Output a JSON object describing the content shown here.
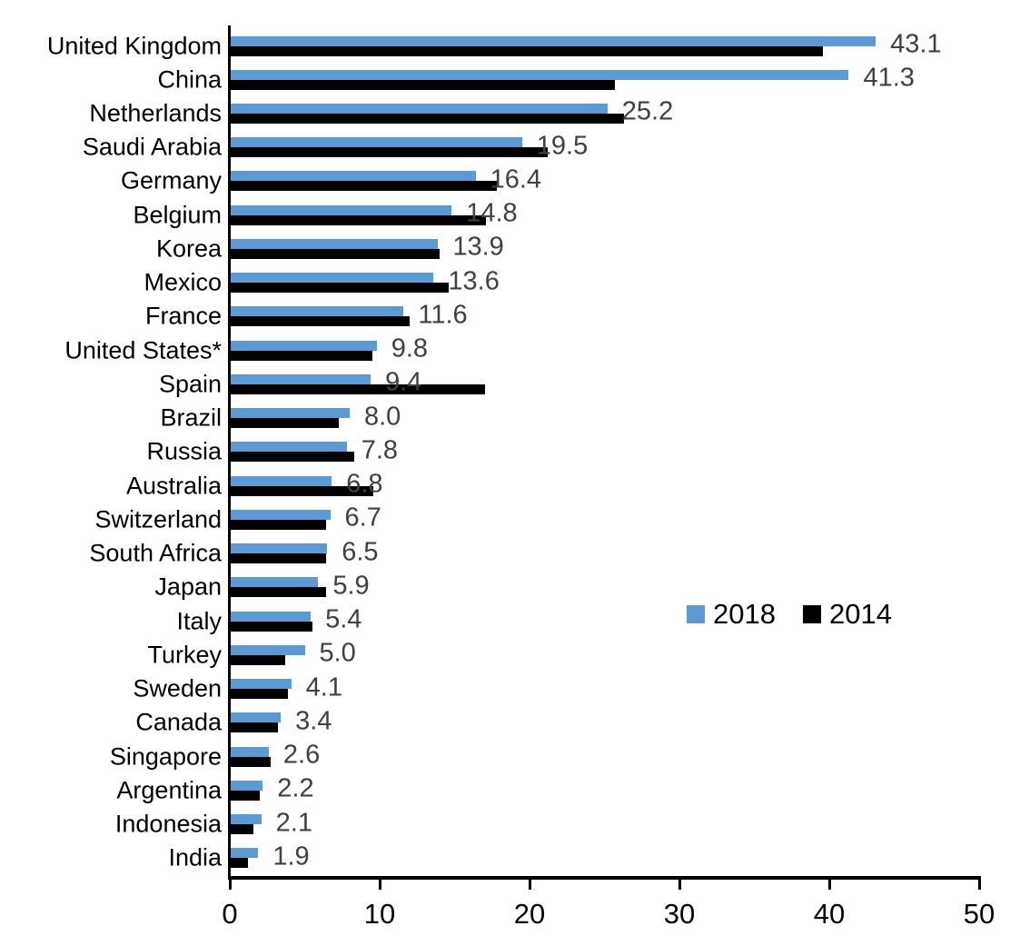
{
  "chart_data": {
    "type": "bar",
    "orientation": "horizontal",
    "title": "",
    "xlabel": "",
    "ylabel": "",
    "xlim": [
      0,
      50
    ],
    "x_ticks": [
      0,
      10,
      20,
      30,
      40,
      50
    ],
    "grid": false,
    "legend_position": "middle-right",
    "data_labels_on": "2018",
    "categories": [
      "United Kingdom",
      "China",
      "Netherlands",
      "Saudi Arabia",
      "Germany",
      "Belgium",
      "Korea",
      "Mexico",
      "France",
      "United States*",
      "Spain",
      "Brazil",
      "Russia",
      "Australia",
      "Switzerland",
      "South Africa",
      "Japan",
      "Italy",
      "Turkey",
      "Sweden",
      "Canada",
      "Singapore",
      "Argentina",
      "Indonesia",
      "India"
    ],
    "series": [
      {
        "name": "2018",
        "color": "#5C9AD3",
        "values": [
          43.1,
          41.3,
          25.2,
          19.5,
          16.4,
          14.8,
          13.9,
          13.6,
          11.6,
          9.8,
          9.4,
          8.0,
          7.8,
          6.8,
          6.7,
          6.5,
          5.9,
          5.4,
          5.0,
          4.1,
          3.4,
          2.6,
          2.2,
          2.1,
          1.9
        ],
        "data_labels": [
          "43.1",
          "41.3",
          "25.2",
          "19.5",
          "16.4",
          "14.8",
          "13.9",
          "13.6",
          "11.6",
          "9.8",
          "9.4",
          "8.0",
          "7.8",
          "6.8",
          "6.7",
          "6.5",
          "5.9",
          "5.4",
          "5.0",
          "4.1",
          "3.4",
          "2.6",
          "2.2",
          "2.1",
          "1.9"
        ]
      },
      {
        "name": "2014",
        "color": "#000000",
        "values": [
          39.6,
          25.7,
          26.3,
          21.2,
          17.8,
          17.1,
          14.0,
          14.6,
          12.0,
          9.5,
          17.0,
          7.3,
          8.3,
          9.6,
          6.4,
          6.4,
          6.4,
          5.5,
          3.7,
          3.9,
          3.2,
          2.7,
          2.0,
          1.6,
          1.2
        ]
      }
    ],
    "x_tick_labels": [
      "0",
      "10",
      "20",
      "30",
      "40",
      "50"
    ]
  },
  "legend": {
    "items": [
      {
        "label": "2018",
        "color": "#5C9AD3"
      },
      {
        "label": "2014",
        "color": "#000000"
      }
    ]
  },
  "colors": {
    "background": "#ffffff",
    "axis": "#000000",
    "value_label": "#404040",
    "category_label": "#000000",
    "series_2018": "#5C9AD3",
    "series_2014": "#000000"
  }
}
